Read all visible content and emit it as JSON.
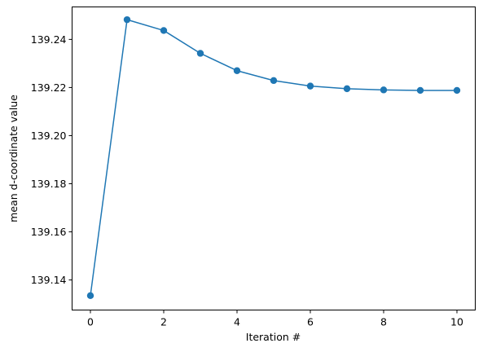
{
  "chart_data": {
    "type": "line",
    "title": "",
    "xlabel": "Iteration #",
    "ylabel": "mean d-coordinate value",
    "x": [
      0,
      1,
      2,
      3,
      4,
      5,
      6,
      7,
      8,
      9,
      10
    ],
    "series": [
      {
        "values": [
          139.1335,
          139.2482,
          139.2437,
          139.2342,
          139.227,
          139.2229,
          139.2206,
          139.2195,
          139.219,
          139.2188,
          139.2188
        ],
        "color": "#1f77b4",
        "marker": "circle"
      }
    ],
    "xlim": [
      -0.5,
      10.5
    ],
    "ylim": [
      139.1275,
      139.2535
    ],
    "xticks": [
      0,
      2,
      4,
      6,
      8,
      10
    ],
    "xtick_labels": [
      "0",
      "2",
      "4",
      "6",
      "8",
      "10"
    ],
    "yticks": [
      139.14,
      139.16,
      139.18,
      139.2,
      139.22,
      139.24
    ],
    "ytick_labels": [
      "139.14",
      "139.16",
      "139.18",
      "139.20",
      "139.22",
      "139.24"
    ],
    "grid": false,
    "legend": "none"
  }
}
